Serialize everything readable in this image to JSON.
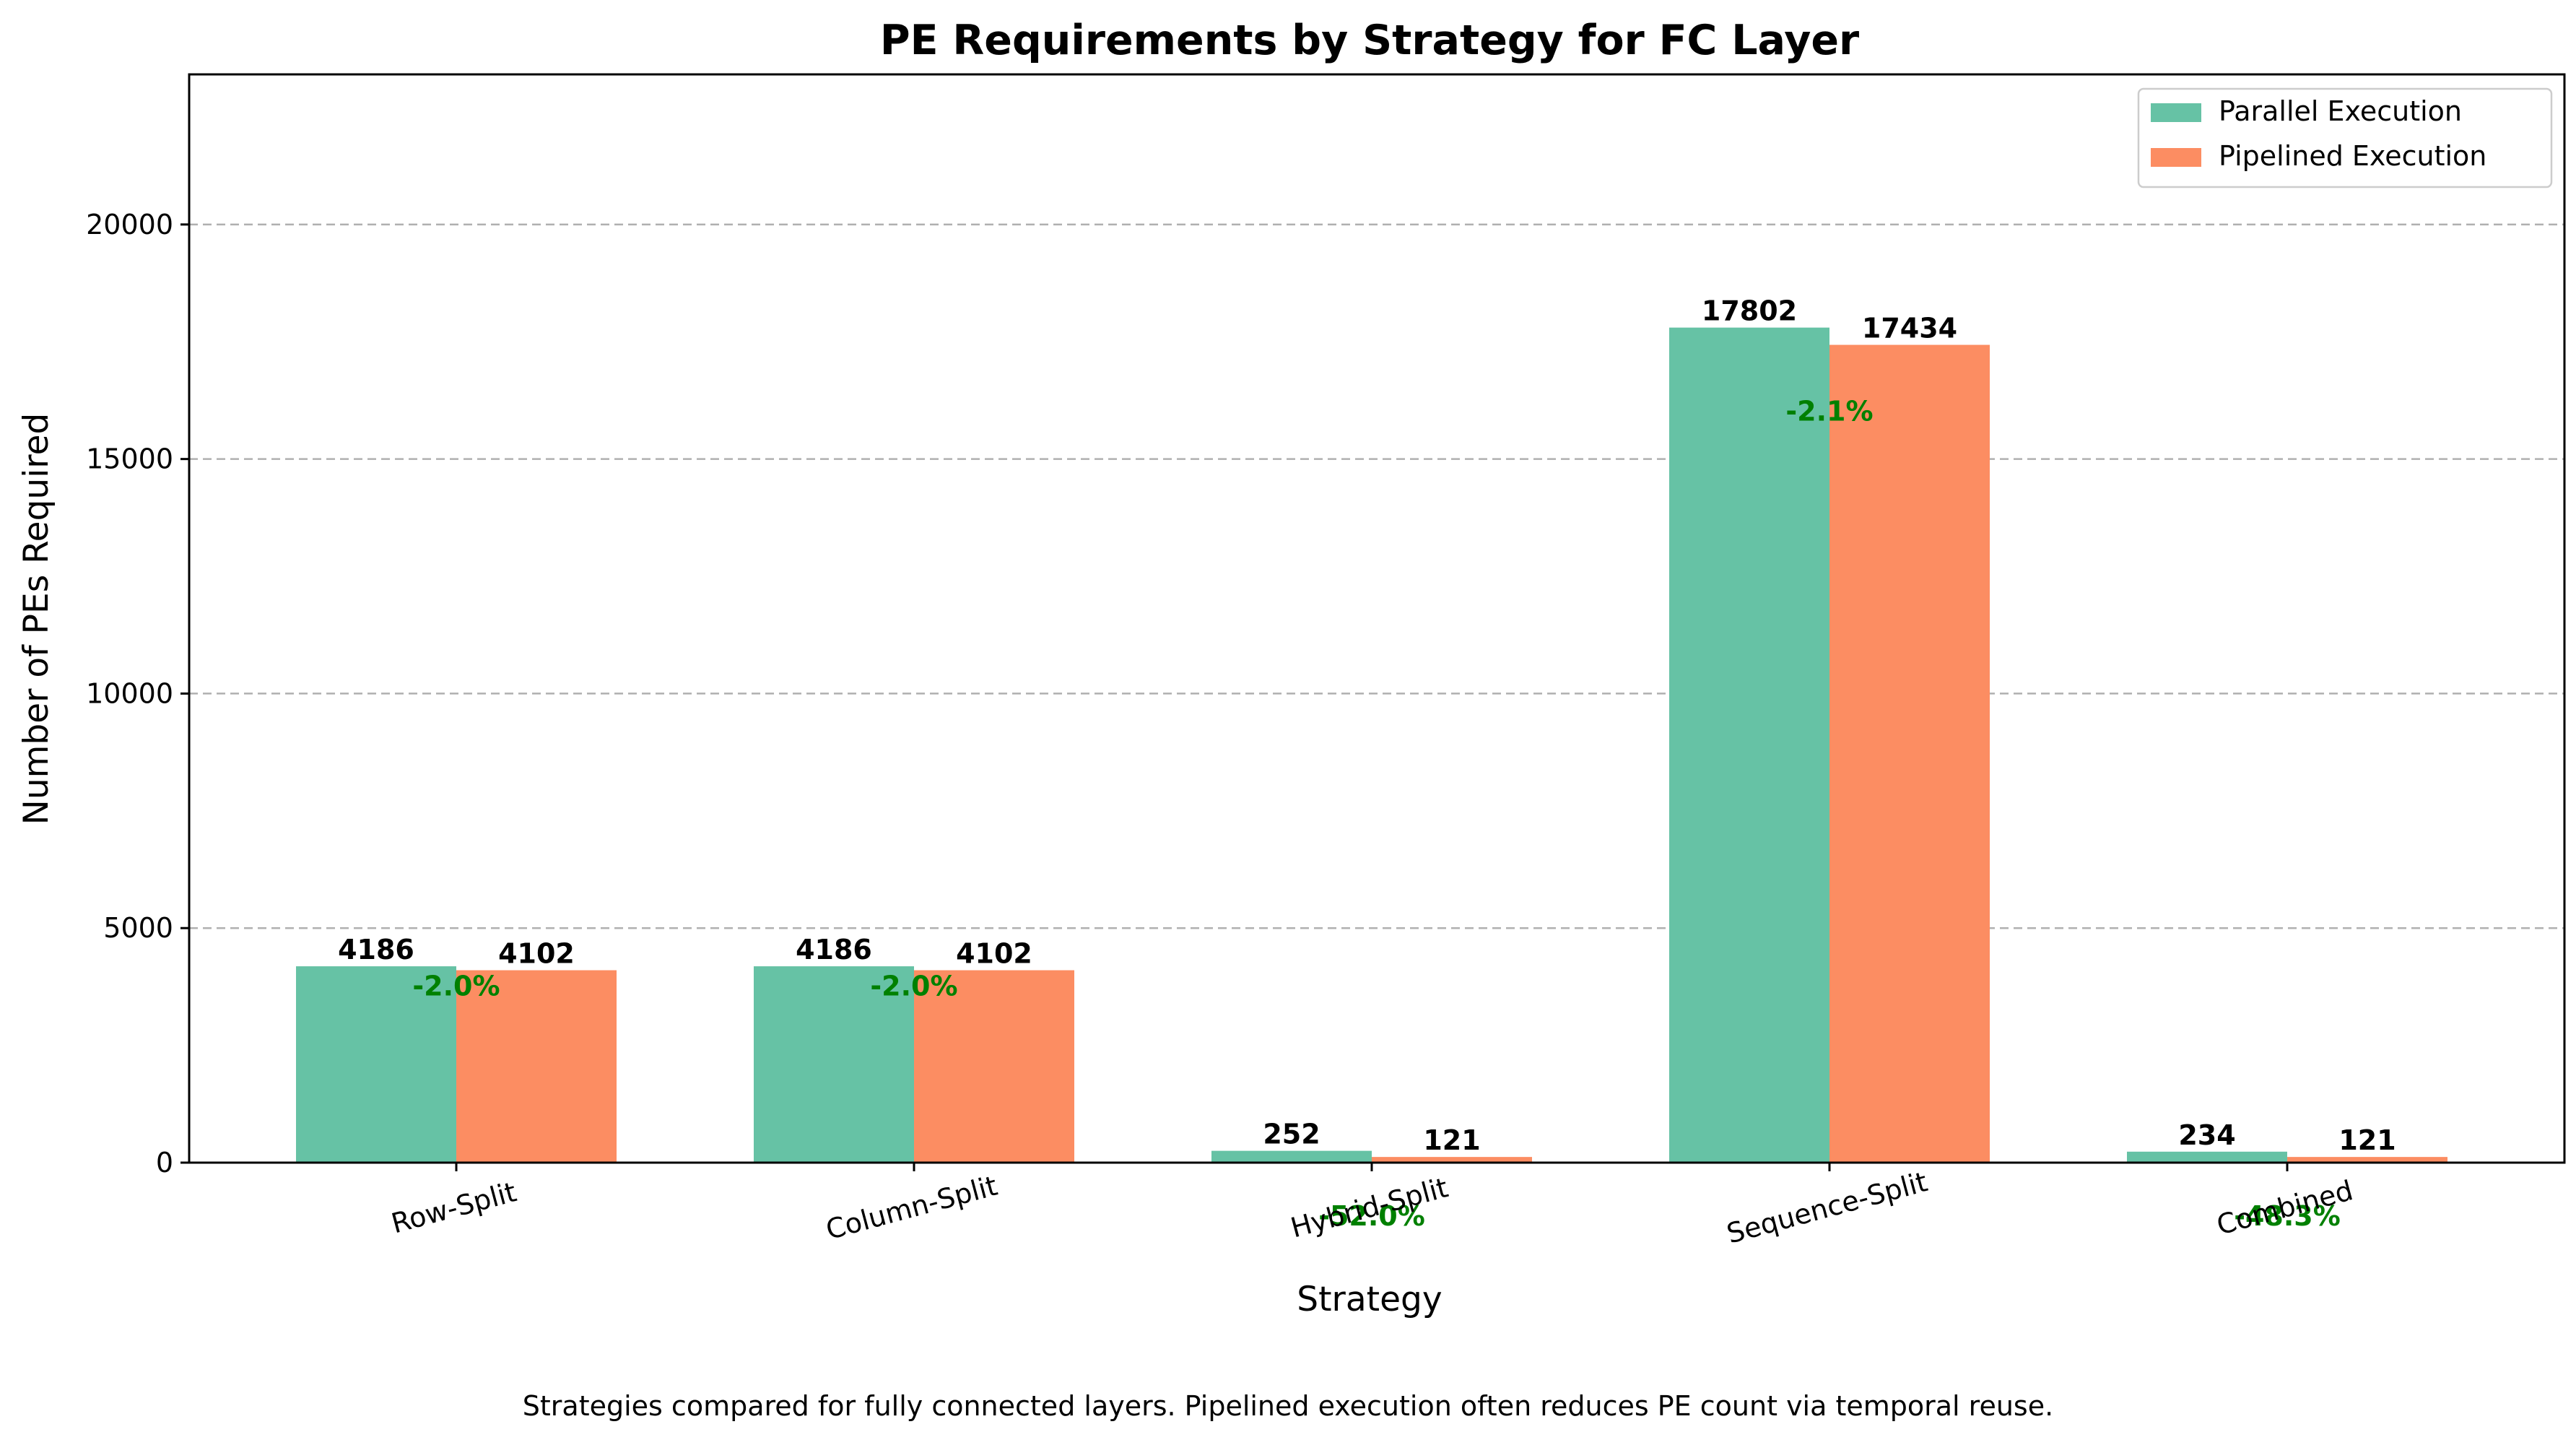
{
  "chart_data": {
    "type": "bar",
    "title": "PE Requirements by Strategy for FC Layer",
    "xlabel": "Strategy",
    "ylabel": "Number of PEs Required",
    "caption": "Strategies compared for fully connected layers. Pipelined execution often reduces PE count via temporal reuse.",
    "categories": [
      "Row-Split",
      "Column-Split",
      "Hybrid-Split",
      "Sequence-Split",
      "Combined"
    ],
    "series": [
      {
        "name": "Parallel Execution",
        "color": "#66c2a5",
        "values": [
          4186,
          4186,
          252,
          17802,
          234
        ]
      },
      {
        "name": "Pipelined Execution",
        "color": "#fc8d62",
        "values": [
          4102,
          4102,
          121,
          17434,
          121
        ]
      }
    ],
    "annotations": [
      "-2.0%",
      "-2.0%",
      "-52.0%",
      "-2.1%",
      "-48.3%"
    ],
    "annotation_color": "#008000",
    "ylim": [
      0,
      23200
    ],
    "yticks": [
      "0",
      "5000",
      "10000",
      "15000",
      "20000"
    ],
    "grid": "y-dashed",
    "legend_position": "top-right"
  }
}
